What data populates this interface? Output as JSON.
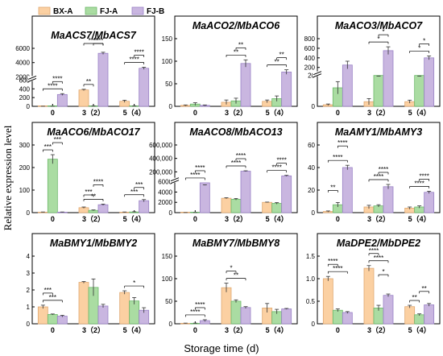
{
  "figure": {
    "ylabel": "Relative expression level",
    "xlabel": "Storage time (d)"
  },
  "legend": [
    {
      "name": "BX-A",
      "color": "#fbd0a2"
    },
    {
      "name": "FJ-A",
      "color": "#aadca2"
    },
    {
      "name": "FJ-B",
      "color": "#c9b6e0"
    }
  ],
  "chart_data": [
    {
      "type": "bar",
      "title": "MaACS7/MbACS7",
      "categories": [
        "0",
        "3（2）",
        "5（4）"
      ],
      "axis": {
        "broken": true,
        "lower": [
          0,
          600
        ],
        "upper": [
          2000,
          6000
        ],
        "lower_ticks": [
          0,
          200,
          400,
          600
        ],
        "upper_ticks": [
          2000,
          4000,
          6000
        ],
        "tick_labels": [
          "0",
          "200",
          "400",
          "600",
          "2000",
          "4000",
          "6000"
        ]
      },
      "series": [
        {
          "name": "BX-A",
          "values": [
            1,
            375,
            115
          ],
          "err": [
            0,
            15,
            25
          ]
        },
        {
          "name": "FJ-A",
          "values": [
            1,
            5,
            5
          ],
          "err": [
            0,
            2,
            2
          ]
        },
        {
          "name": "FJ-B",
          "values": [
            270,
            5300,
            3200
          ],
          "err": [
            20,
            150,
            150
          ]
        }
      ],
      "sig": [
        {
          "label": "****",
          "from": [
            0,
            0
          ],
          "to": [
            0,
            2
          ]
        },
        {
          "label": "****",
          "from": [
            0,
            1
          ],
          "to": [
            0,
            2
          ]
        },
        {
          "label": "**",
          "from": [
            1,
            0
          ],
          "to": [
            1,
            1
          ]
        },
        {
          "label": "****",
          "from": [
            1,
            0
          ],
          "to": [
            1,
            2
          ]
        },
        {
          "label": "****",
          "from": [
            1,
            1
          ],
          "to": [
            1,
            2
          ]
        },
        {
          "label": "****",
          "from": [
            2,
            0
          ],
          "to": [
            2,
            2
          ]
        },
        {
          "label": "****",
          "from": [
            2,
            1
          ],
          "to": [
            2,
            2
          ]
        }
      ]
    },
    {
      "type": "bar",
      "title": "MaACO2/MbACO6",
      "categories": [
        "0",
        "3（2）",
        "5（4）"
      ],
      "axis": {
        "broken": false,
        "range": [
          0,
          150
        ],
        "ticks": [
          0,
          50,
          100,
          150
        ],
        "tick_labels": [
          "0",
          "50",
          "100",
          "150"
        ]
      },
      "series": [
        {
          "name": "BX-A",
          "values": [
            2,
            9,
            11
          ],
          "err": [
            1,
            5,
            3
          ]
        },
        {
          "name": "FJ-A",
          "values": [
            5,
            12,
            17
          ],
          "err": [
            3,
            6,
            6
          ]
        },
        {
          "name": "FJ-B",
          "values": [
            2,
            95,
            76
          ],
          "err": [
            1,
            8,
            5
          ]
        }
      ],
      "sig": [
        {
          "label": "**",
          "from": [
            1,
            0
          ],
          "to": [
            1,
            2
          ]
        },
        {
          "label": "**",
          "from": [
            1,
            1
          ],
          "to": [
            1,
            2
          ]
        },
        {
          "label": "**",
          "from": [
            2,
            0
          ],
          "to": [
            2,
            2
          ]
        },
        {
          "label": "**",
          "from": [
            2,
            1
          ],
          "to": [
            2,
            2
          ]
        }
      ]
    },
    {
      "type": "bar",
      "title": "MaACO3/MbACO7",
      "categories": [
        "0",
        "3（2）",
        "5（4）"
      ],
      "axis": {
        "broken": true,
        "lower": [
          0,
          20
        ],
        "upper": [
          100,
          800
        ],
        "lower_ticks": [
          0,
          20
        ],
        "upper_ticks": [
          200,
          400,
          600,
          800
        ],
        "tick_labels": [
          "0",
          "20",
          "200",
          "400",
          "600",
          "800"
        ]
      },
      "series": [
        {
          "name": "BX-A",
          "values": [
            1,
            3,
            3
          ],
          "err": [
            0.5,
            2,
            1
          ]
        },
        {
          "name": "FJ-A",
          "values": [
            12,
            20,
            20
          ],
          "err": [
            4,
            0.5,
            0.5
          ]
        },
        {
          "name": "FJ-B",
          "values": [
            250,
            550,
            400
          ],
          "err": [
            80,
            80,
            40
          ]
        }
      ],
      "sig": [
        {
          "label": "*",
          "from": [
            1,
            0
          ],
          "to": [
            1,
            2
          ]
        },
        {
          "label": "*",
          "from": [
            1,
            1
          ],
          "to": [
            1,
            2
          ]
        },
        {
          "label": "*",
          "from": [
            2,
            0
          ],
          "to": [
            2,
            2
          ]
        },
        {
          "label": "*",
          "from": [
            2,
            1
          ],
          "to": [
            2,
            2
          ]
        }
      ]
    },
    {
      "type": "bar",
      "title": "MaACO6/MbACO17",
      "categories": [
        "0",
        "3（2）",
        "5（4）"
      ],
      "axis": {
        "broken": false,
        "range": [
          0,
          300
        ],
        "ticks": [
          0,
          100,
          200,
          300
        ],
        "tick_labels": [
          "0",
          "100",
          "200",
          "300"
        ]
      },
      "series": [
        {
          "name": "BX-A",
          "values": [
            2,
            22,
            2
          ],
          "err": [
            1,
            3,
            1
          ]
        },
        {
          "name": "FJ-A",
          "values": [
            237,
            10,
            3
          ],
          "err": [
            20,
            2,
            1
          ]
        },
        {
          "name": "FJ-B",
          "values": [
            2,
            35,
            53
          ],
          "err": [
            1,
            3,
            5
          ]
        }
      ],
      "sig": [
        {
          "label": "***",
          "from": [
            0,
            0
          ],
          "to": [
            0,
            1
          ]
        },
        {
          "label": "***",
          "from": [
            0,
            1
          ],
          "to": [
            0,
            2
          ]
        },
        {
          "label": "**",
          "from": [
            1,
            0
          ],
          "to": [
            1,
            2
          ]
        },
        {
          "label": "***",
          "from": [
            1,
            0
          ],
          "to": [
            1,
            1
          ]
        },
        {
          "label": "****",
          "from": [
            1,
            1
          ],
          "to": [
            1,
            2
          ]
        },
        {
          "label": "***",
          "from": [
            2,
            0
          ],
          "to": [
            2,
            2
          ]
        },
        {
          "label": "***",
          "from": [
            2,
            1
          ],
          "to": [
            2,
            2
          ]
        }
      ]
    },
    {
      "type": "bar",
      "title": "MaACO8/MbACO13",
      "categories": [
        "0",
        "3（2）",
        "5（4）"
      ],
      "axis": {
        "broken": true,
        "lower": [
          0,
          6000
        ],
        "upper": [
          100000,
          600000
        ],
        "lower_ticks": [
          0,
          2000,
          4000,
          6000
        ],
        "upper_ticks": [
          200000,
          400000,
          600000
        ],
        "tick_labels": [
          "0",
          "2000",
          "4000",
          "6000",
          "200,000",
          "400,000",
          "600,000"
        ]
      },
      "series": [
        {
          "name": "BX-A",
          "values": [
            5,
            2800,
            2000
          ],
          "err": [
            2,
            100,
            50
          ]
        },
        {
          "name": "FJ-A",
          "values": [
            5,
            2600,
            1800
          ],
          "err": [
            2,
            150,
            150
          ]
        },
        {
          "name": "FJ-B",
          "values": [
            5800,
            210000,
            140000
          ],
          "err": [
            500,
            6000,
            8000
          ]
        }
      ],
      "sig": [
        {
          "label": "****",
          "from": [
            0,
            0
          ],
          "to": [
            0,
            2
          ]
        },
        {
          "label": "****",
          "from": [
            0,
            1
          ],
          "to": [
            0,
            2
          ]
        },
        {
          "label": "****",
          "from": [
            1,
            0
          ],
          "to": [
            1,
            2
          ]
        },
        {
          "label": "****",
          "from": [
            1,
            1
          ],
          "to": [
            1,
            2
          ]
        },
        {
          "label": "****",
          "from": [
            2,
            0
          ],
          "to": [
            2,
            2
          ]
        },
        {
          "label": "****",
          "from": [
            2,
            1
          ],
          "to": [
            2,
            2
          ]
        }
      ]
    },
    {
      "type": "bar",
      "title": "MaAMY1/MbAMY3",
      "categories": [
        "0",
        "3（2）",
        "5（4）"
      ],
      "axis": {
        "broken": false,
        "range": [
          0,
          60
        ],
        "ticks": [
          0,
          20,
          40,
          60
        ],
        "tick_labels": [
          "0",
          "20",
          "40",
          "60"
        ]
      },
      "series": [
        {
          "name": "BX-A",
          "values": [
            1,
            5,
            4
          ],
          "err": [
            0.5,
            1.5,
            1
          ]
        },
        {
          "name": "FJ-A",
          "values": [
            7,
            6,
            5
          ],
          "err": [
            2,
            1,
            1
          ]
        },
        {
          "name": "FJ-B",
          "values": [
            40,
            23,
            18
          ],
          "err": [
            2,
            2,
            1
          ]
        }
      ],
      "sig": [
        {
          "label": "****",
          "from": [
            0,
            0
          ],
          "to": [
            0,
            2
          ]
        },
        {
          "label": "**",
          "from": [
            0,
            0
          ],
          "to": [
            0,
            1
          ]
        },
        {
          "label": "****",
          "from": [
            0,
            1
          ],
          "to": [
            0,
            2
          ]
        },
        {
          "label": "****",
          "from": [
            1,
            0
          ],
          "to": [
            1,
            2
          ]
        },
        {
          "label": "****",
          "from": [
            1,
            1
          ],
          "to": [
            1,
            2
          ]
        },
        {
          "label": "****",
          "from": [
            2,
            0
          ],
          "to": [
            2,
            2
          ]
        },
        {
          "label": "****",
          "from": [
            2,
            1
          ],
          "to": [
            2,
            2
          ]
        }
      ]
    },
    {
      "type": "bar",
      "title": "MaBMY1/MbBMY2",
      "categories": [
        "0",
        "3（2）",
        "5（4）"
      ],
      "axis": {
        "broken": false,
        "range": [
          0,
          4
        ],
        "ticks": [
          0,
          1,
          2,
          3,
          4
        ],
        "tick_labels": [
          "0",
          "1",
          "2",
          "3",
          "4"
        ]
      },
      "series": [
        {
          "name": "BX-A",
          "values": [
            1.0,
            2.45,
            1.85
          ],
          "err": [
            0.1,
            0.05,
            0.1
          ]
        },
        {
          "name": "FJ-A",
          "values": [
            0.55,
            2.15,
            1.35
          ],
          "err": [
            0.03,
            0.5,
            0.2
          ]
        },
        {
          "name": "FJ-B",
          "values": [
            0.45,
            1.05,
            0.8
          ],
          "err": [
            0.05,
            0.1,
            0.15
          ]
        }
      ],
      "sig": [
        {
          "label": "***",
          "from": [
            0,
            0
          ],
          "to": [
            0,
            2
          ]
        },
        {
          "label": "***",
          "from": [
            0,
            0
          ],
          "to": [
            0,
            1
          ]
        },
        {
          "label": "*",
          "from": [
            2,
            0
          ],
          "to": [
            2,
            2
          ]
        }
      ]
    },
    {
      "type": "bar",
      "title": "MaBMY7/MbBMY8",
      "categories": [
        "0",
        "3（2）",
        "5（4）"
      ],
      "axis": {
        "broken": false,
        "range": [
          0,
          150
        ],
        "ticks": [
          0,
          50,
          100,
          150
        ],
        "tick_labels": [
          "0",
          "50",
          "100",
          "150"
        ]
      },
      "series": [
        {
          "name": "BX-A",
          "values": [
            1,
            80,
            35
          ],
          "err": [
            0.5,
            10,
            10
          ]
        },
        {
          "name": "FJ-A",
          "values": [
            1,
            50,
            27
          ],
          "err": [
            0.5,
            3,
            5
          ]
        },
        {
          "name": "FJ-B",
          "values": [
            7,
            36,
            33
          ],
          "err": [
            2,
            2,
            1
          ]
        }
      ],
      "sig": [
        {
          "label": "****",
          "from": [
            0,
            0
          ],
          "to": [
            0,
            2
          ]
        },
        {
          "label": "****",
          "from": [
            0,
            1
          ],
          "to": [
            0,
            2
          ]
        },
        {
          "label": "**",
          "from": [
            1,
            0
          ],
          "to": [
            1,
            2
          ]
        },
        {
          "label": "*",
          "from": [
            1,
            0
          ],
          "to": [
            1,
            1
          ]
        }
      ]
    },
    {
      "type": "bar",
      "title": "MaDPE2/MbDPE2",
      "categories": [
        "0",
        "3（2）",
        "5（4）"
      ],
      "axis": {
        "broken": false,
        "range": [
          0,
          1.5
        ],
        "ticks": [
          0,
          0.5,
          1.0,
          1.5
        ],
        "tick_labels": [
          "0",
          "0.5",
          "1.0",
          "1.5"
        ]
      },
      "series": [
        {
          "name": "BX-A",
          "values": [
            1.0,
            1.23,
            0.38
          ],
          "err": [
            0.05,
            0.06,
            0.03
          ]
        },
        {
          "name": "FJ-A",
          "values": [
            0.3,
            0.35,
            0.2
          ],
          "err": [
            0.03,
            0.06,
            0.02
          ]
        },
        {
          "name": "FJ-B",
          "values": [
            0.25,
            0.63,
            0.42
          ],
          "err": [
            0.02,
            0.03,
            0.03
          ]
        }
      ],
      "sig": [
        {
          "label": "****",
          "from": [
            0,
            0
          ],
          "to": [
            0,
            2
          ]
        },
        {
          "label": "****",
          "from": [
            0,
            0
          ],
          "to": [
            0,
            1
          ]
        },
        {
          "label": "****",
          "from": [
            1,
            0
          ],
          "to": [
            1,
            2
          ]
        },
        {
          "label": "****",
          "from": [
            1,
            0
          ],
          "to": [
            1,
            1
          ]
        },
        {
          "label": "*",
          "from": [
            1,
            1
          ],
          "to": [
            1,
            2
          ]
        },
        {
          "label": "**",
          "from": [
            2,
            0
          ],
          "to": [
            2,
            1
          ]
        },
        {
          "label": "**",
          "from": [
            2,
            1
          ],
          "to": [
            2,
            2
          ]
        }
      ]
    }
  ]
}
